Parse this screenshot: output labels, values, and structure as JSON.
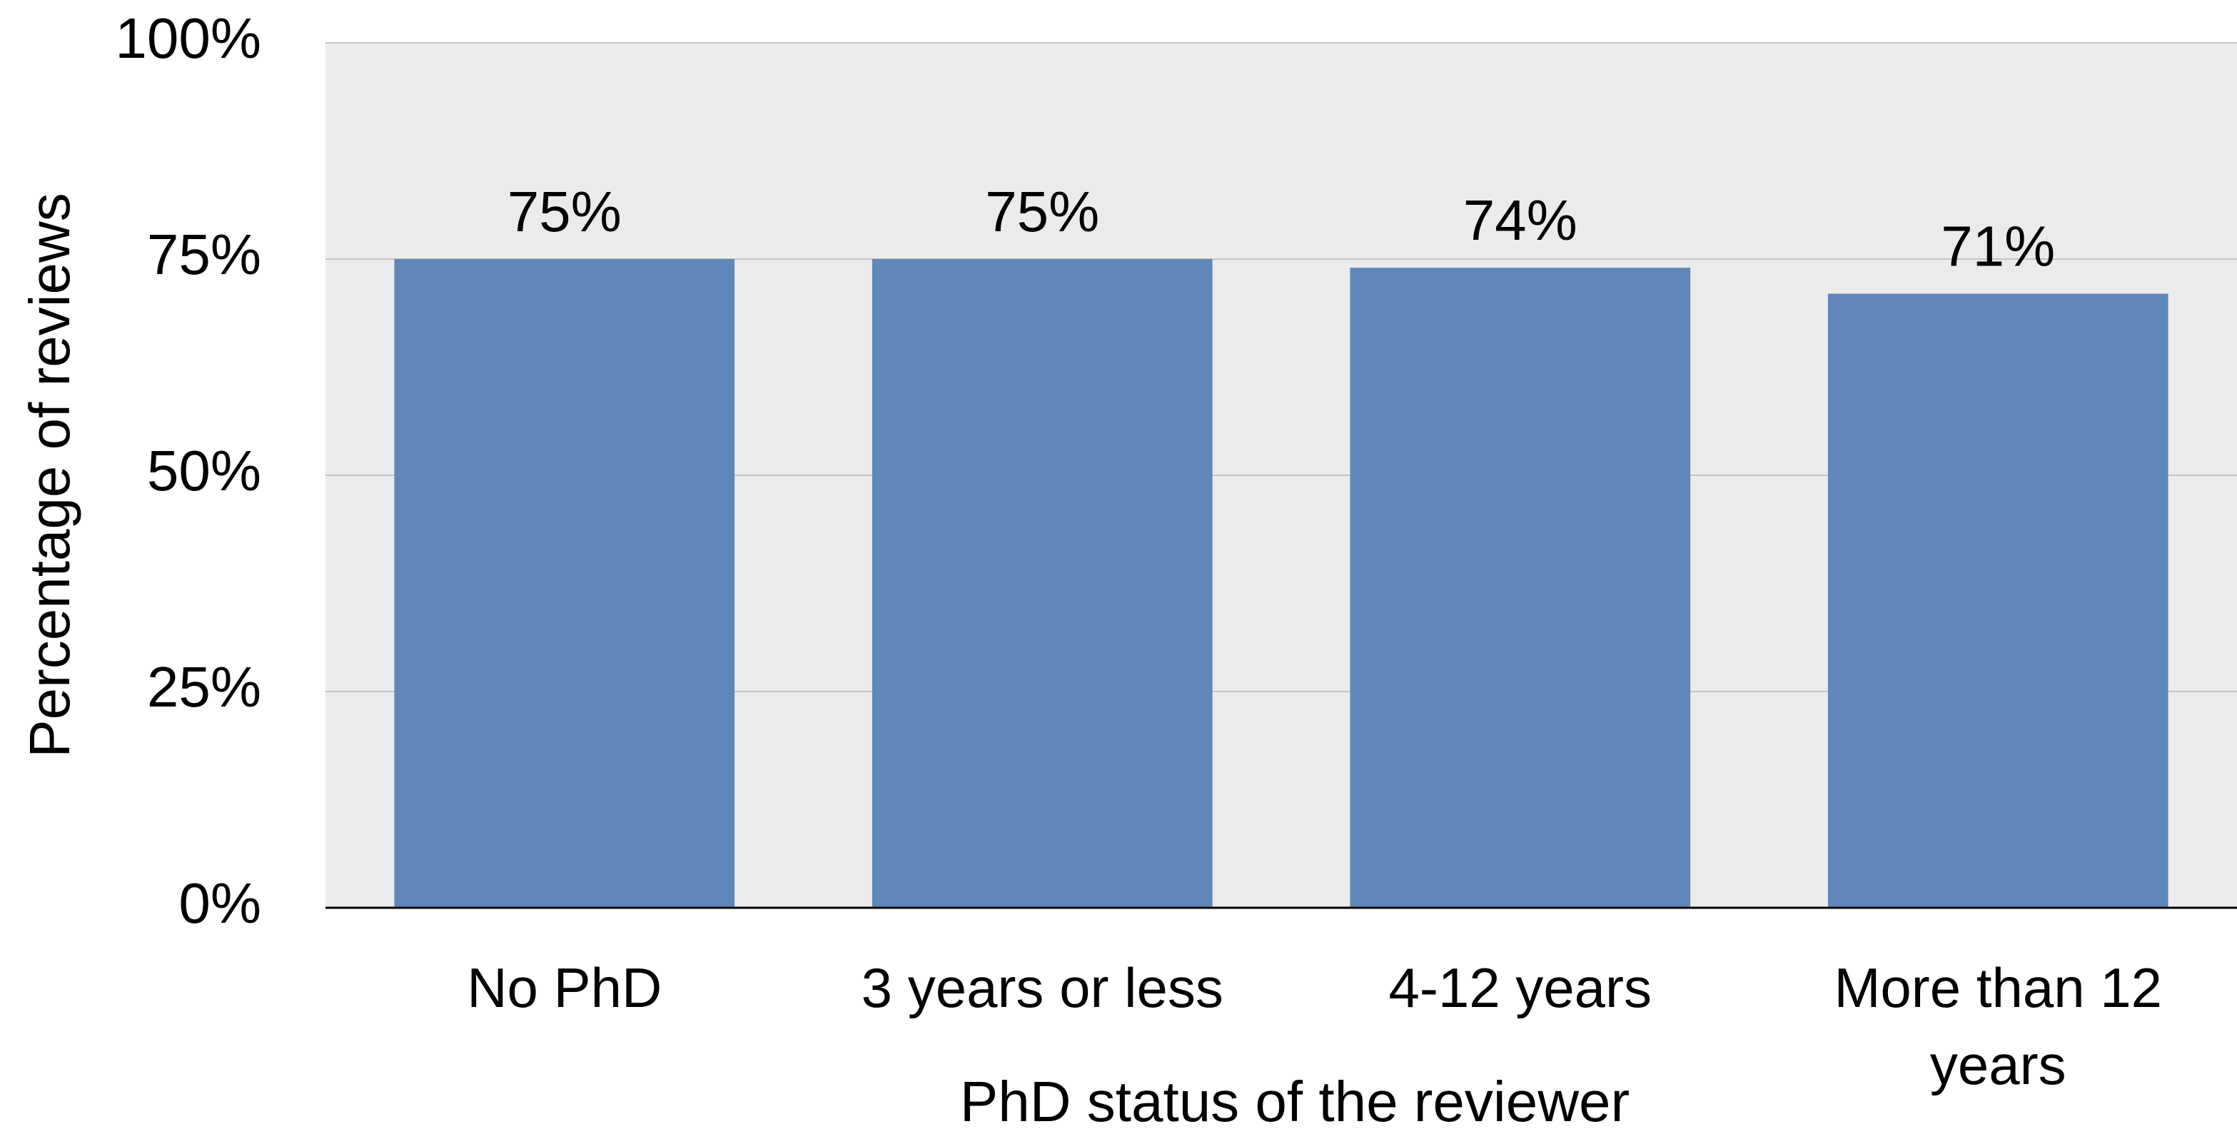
{
  "chart_data": {
    "type": "bar",
    "categories": [
      "No PhD",
      "3 years or less",
      "4-12 years",
      "More than 12 years"
    ],
    "values": [
      75,
      75,
      74,
      71
    ],
    "value_labels": [
      "75%",
      "75%",
      "74%",
      "71%"
    ],
    "color": "#5f87b9",
    "x_label": "PhD status of the reviewer",
    "y_label": "Percentage of reviews",
    "ylim": [
      0,
      100
    ],
    "yticks": [
      {
        "value": 0,
        "label": "0%"
      },
      {
        "value": 25,
        "label": "25%"
      },
      {
        "value": 50,
        "label": "50%"
      },
      {
        "value": 75,
        "label": "75%"
      },
      {
        "value": 100,
        "label": "100%"
      }
    ],
    "grid": true
  }
}
